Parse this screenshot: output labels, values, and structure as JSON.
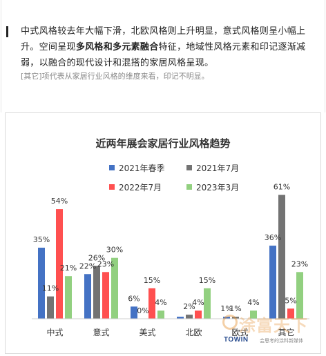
{
  "article": {
    "para_part1": "中式风格较去年大幅下滑，北欧风格则上升明显，意式风格则呈小幅上升。空间呈现",
    "para_bold": "多风格和多元素融合",
    "para_part2": "特征，地域性风格元素和印记逐渐减弱，以融合的现代设计和混搭的家居风格呈现。",
    "note": "[其它]项代表从家居行业风格的维度来看，印记不明显。"
  },
  "chart_data": {
    "type": "bar",
    "title": "近两年展会家居行业风格趋势",
    "categories": [
      "中式",
      "意式",
      "美式",
      "北欧",
      "欧式",
      "其它"
    ],
    "series": [
      {
        "name": "2021年春季",
        "color": "#4472c4",
        "values": [
          35,
          22,
          6,
          1,
          1,
          36
        ]
      },
      {
        "name": "2021年7月",
        "color": "#737373",
        "values": [
          11,
          26,
          0,
          2,
          1,
          61
        ]
      },
      {
        "name": "2022年7月",
        "color": "#ff5050",
        "values": [
          54,
          23,
          15,
          4,
          0,
          5
        ]
      },
      {
        "name": "2023年3月",
        "color": "#92d080",
        "values": [
          21,
          30,
          4,
          15,
          4,
          23
        ]
      }
    ],
    "data_labels": [
      [
        "35%",
        "11%",
        "54%",
        "21%"
      ],
      [
        "22%",
        "26%",
        "23%",
        "30%"
      ],
      [
        "6%",
        "0%",
        "15%",
        "4%"
      ],
      [
        "",
        "2%",
        "4%",
        "15%"
      ],
      [
        "1%",
        "1%",
        "",
        "4%"
      ],
      [
        "36%",
        "61%",
        "5%",
        "23%"
      ]
    ],
    "ylim": [
      0,
      70
    ],
    "grid": false,
    "legend": "top"
  },
  "watermark": {
    "main": "涂富天下",
    "brand": "TOWIN",
    "sub": "会思考的涂料新媒体"
  }
}
